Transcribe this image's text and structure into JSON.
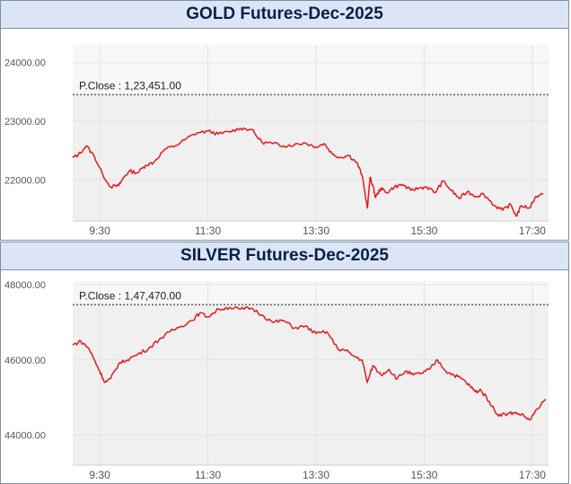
{
  "chart_data": [
    {
      "type": "line",
      "title": "GOLD Futures-Dec-2025",
      "y_ticks": [
        "24000.00",
        "23000.00",
        "22000.00"
      ],
      "x_ticks": [
        "9:30",
        "11:30",
        "13:30",
        "15:30",
        "17:30"
      ],
      "ylim": [
        21300,
        24300
      ],
      "xlim": [
        9.0,
        17.8
      ],
      "reference_label": "P.Close : 1,23,451.00",
      "reference_value": 23451,
      "line_color": "#e31a1c",
      "series": [
        {
          "x": [
            9.0,
            9.1,
            9.25,
            9.4,
            9.55,
            9.7,
            9.85,
            9.95,
            10.05,
            10.2,
            10.35,
            10.5,
            10.7,
            10.9,
            11.1,
            11.3,
            11.5,
            11.7,
            11.9,
            12.1,
            12.3,
            12.5,
            12.7,
            12.9,
            13.1,
            13.3,
            13.5,
            13.65,
            13.8,
            13.95,
            14.1,
            14.25,
            14.35,
            14.45,
            14.5,
            14.55,
            14.6,
            14.7,
            14.8,
            14.95,
            15.1,
            15.25,
            15.4,
            15.55,
            15.7,
            15.85,
            16.0,
            16.15,
            16.3,
            16.45,
            16.6,
            16.8,
            16.95,
            17.1,
            17.2,
            17.3,
            17.45,
            17.55,
            17.7
          ],
          "y": [
            22380,
            22420,
            22580,
            22400,
            22100,
            21880,
            21900,
            22050,
            22150,
            22120,
            22250,
            22300,
            22520,
            22580,
            22700,
            22800,
            22830,
            22780,
            22820,
            22880,
            22860,
            22640,
            22620,
            22580,
            22600,
            22630,
            22560,
            22620,
            22440,
            22380,
            22420,
            22300,
            22080,
            21520,
            22040,
            21900,
            21700,
            21860,
            21780,
            21880,
            21920,
            21820,
            21860,
            21880,
            21780,
            21980,
            21820,
            21680,
            21800,
            21720,
            21760,
            21560,
            21480,
            21580,
            21380,
            21560,
            21520,
            21700,
            21750
          ]
        }
      ]
    },
    {
      "type": "line",
      "title": "SILVER Futures-Dec-2025",
      "y_ticks": [
        "48000.00",
        "46000.00",
        "44000.00"
      ],
      "x_ticks": [
        "9:30",
        "11:30",
        "13:30",
        "15:30",
        "17:30"
      ],
      "ylim": [
        43200,
        48100
      ],
      "xlim": [
        9.0,
        17.8
      ],
      "reference_label": "P.Close : 1,47,470.00",
      "reference_value": 47470,
      "line_color": "#e31a1c",
      "series": [
        {
          "x": [
            9.0,
            9.15,
            9.3,
            9.4,
            9.5,
            9.6,
            9.7,
            9.85,
            10.0,
            10.2,
            10.4,
            10.6,
            10.8,
            11.0,
            11.2,
            11.35,
            11.5,
            11.7,
            11.9,
            12.1,
            12.3,
            12.5,
            12.7,
            12.9,
            13.1,
            13.3,
            13.5,
            13.7,
            13.9,
            14.05,
            14.2,
            14.35,
            14.45,
            14.55,
            14.7,
            14.85,
            15.0,
            15.15,
            15.3,
            15.45,
            15.6,
            15.75,
            15.9,
            16.05,
            16.2,
            16.35,
            16.45,
            16.55,
            16.7,
            16.85,
            17.0,
            17.15,
            17.3,
            17.45,
            17.6,
            17.75
          ],
          "y": [
            46400,
            46500,
            46300,
            46000,
            45700,
            45400,
            45500,
            45900,
            46000,
            46150,
            46300,
            46550,
            46750,
            46900,
            47050,
            47250,
            47150,
            47350,
            47400,
            47350,
            47380,
            47200,
            47000,
            47050,
            46850,
            46900,
            46700,
            46750,
            46300,
            46250,
            46100,
            46000,
            45400,
            45850,
            45600,
            45750,
            45500,
            45700,
            45600,
            45650,
            45750,
            46000,
            45700,
            45600,
            45500,
            45300,
            45150,
            45200,
            44900,
            44550,
            44550,
            44600,
            44550,
            44400,
            44700,
            44950
          ]
        }
      ]
    }
  ]
}
